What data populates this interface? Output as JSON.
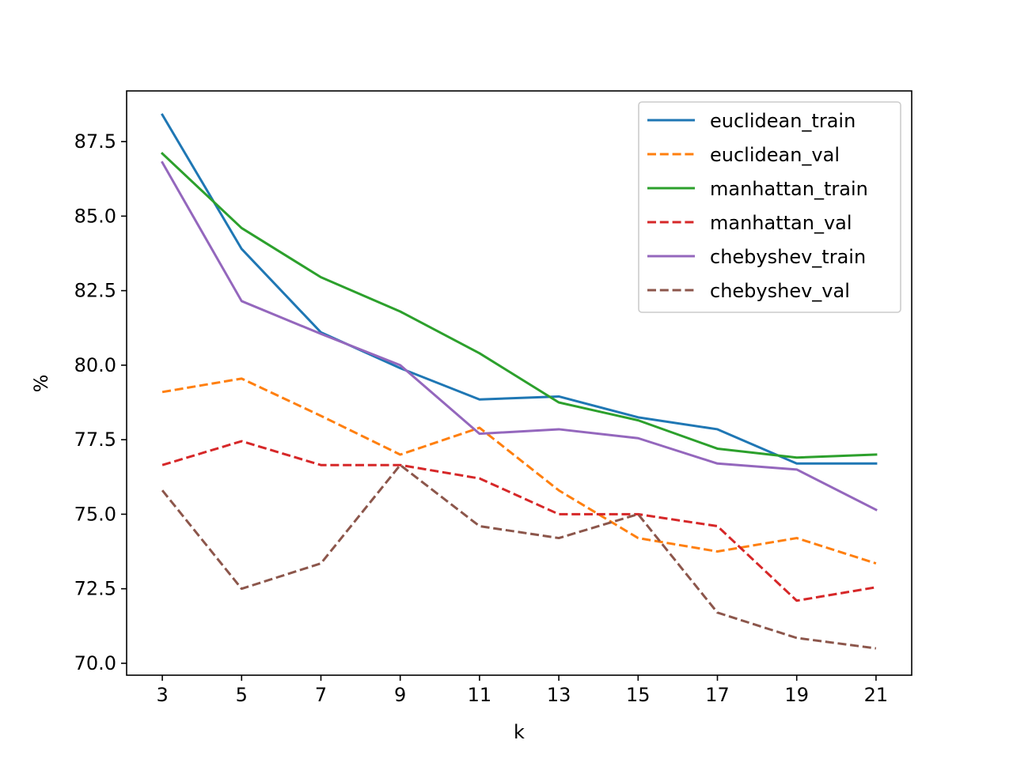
{
  "chart_data": {
    "type": "line",
    "title": "",
    "xlabel": "k",
    "ylabel": "%",
    "x": [
      3,
      5,
      7,
      9,
      11,
      13,
      15,
      17,
      19,
      21
    ],
    "xlim": [
      2.1,
      21.9
    ],
    "ylim": [
      69.6,
      89.2
    ],
    "xticks": [
      3,
      5,
      7,
      9,
      11,
      13,
      15,
      17,
      19,
      21
    ],
    "yticks": [
      70.0,
      72.5,
      75.0,
      77.5,
      80.0,
      82.5,
      85.0,
      87.5
    ],
    "ytick_labels": [
      "70.0",
      "72.5",
      "75.0",
      "77.5",
      "80.0",
      "82.5",
      "85.0",
      "87.5"
    ],
    "grid": false,
    "legend_position": "upper right",
    "series": [
      {
        "name": "euclidean_train",
        "color": "#1f77b4",
        "dashed": false,
        "values": [
          88.4,
          83.9,
          81.1,
          79.9,
          78.85,
          78.95,
          78.25,
          77.85,
          76.7,
          76.7
        ]
      },
      {
        "name": "euclidean_val",
        "color": "#ff7f0e",
        "dashed": true,
        "values": [
          79.1,
          79.55,
          78.3,
          77.0,
          77.9,
          75.8,
          74.2,
          73.75,
          74.2,
          73.35
        ]
      },
      {
        "name": "manhattan_train",
        "color": "#2ca02c",
        "dashed": false,
        "values": [
          87.1,
          84.6,
          82.95,
          81.8,
          80.4,
          78.75,
          78.15,
          77.2,
          76.9,
          77.0
        ]
      },
      {
        "name": "manhattan_val",
        "color": "#d62728",
        "dashed": true,
        "values": [
          76.65,
          77.45,
          76.65,
          76.65,
          76.2,
          75.0,
          75.0,
          74.6,
          72.1,
          72.55
        ]
      },
      {
        "name": "chebyshev_train",
        "color": "#9467bd",
        "dashed": false,
        "values": [
          86.8,
          82.15,
          81.05,
          80.0,
          77.7,
          77.85,
          77.55,
          76.7,
          76.5,
          75.15
        ]
      },
      {
        "name": "chebyshev_val",
        "color": "#8c564b",
        "dashed": true,
        "values": [
          75.8,
          72.5,
          73.35,
          76.65,
          74.6,
          74.2,
          75.0,
          71.7,
          70.85,
          70.5
        ]
      }
    ]
  }
}
